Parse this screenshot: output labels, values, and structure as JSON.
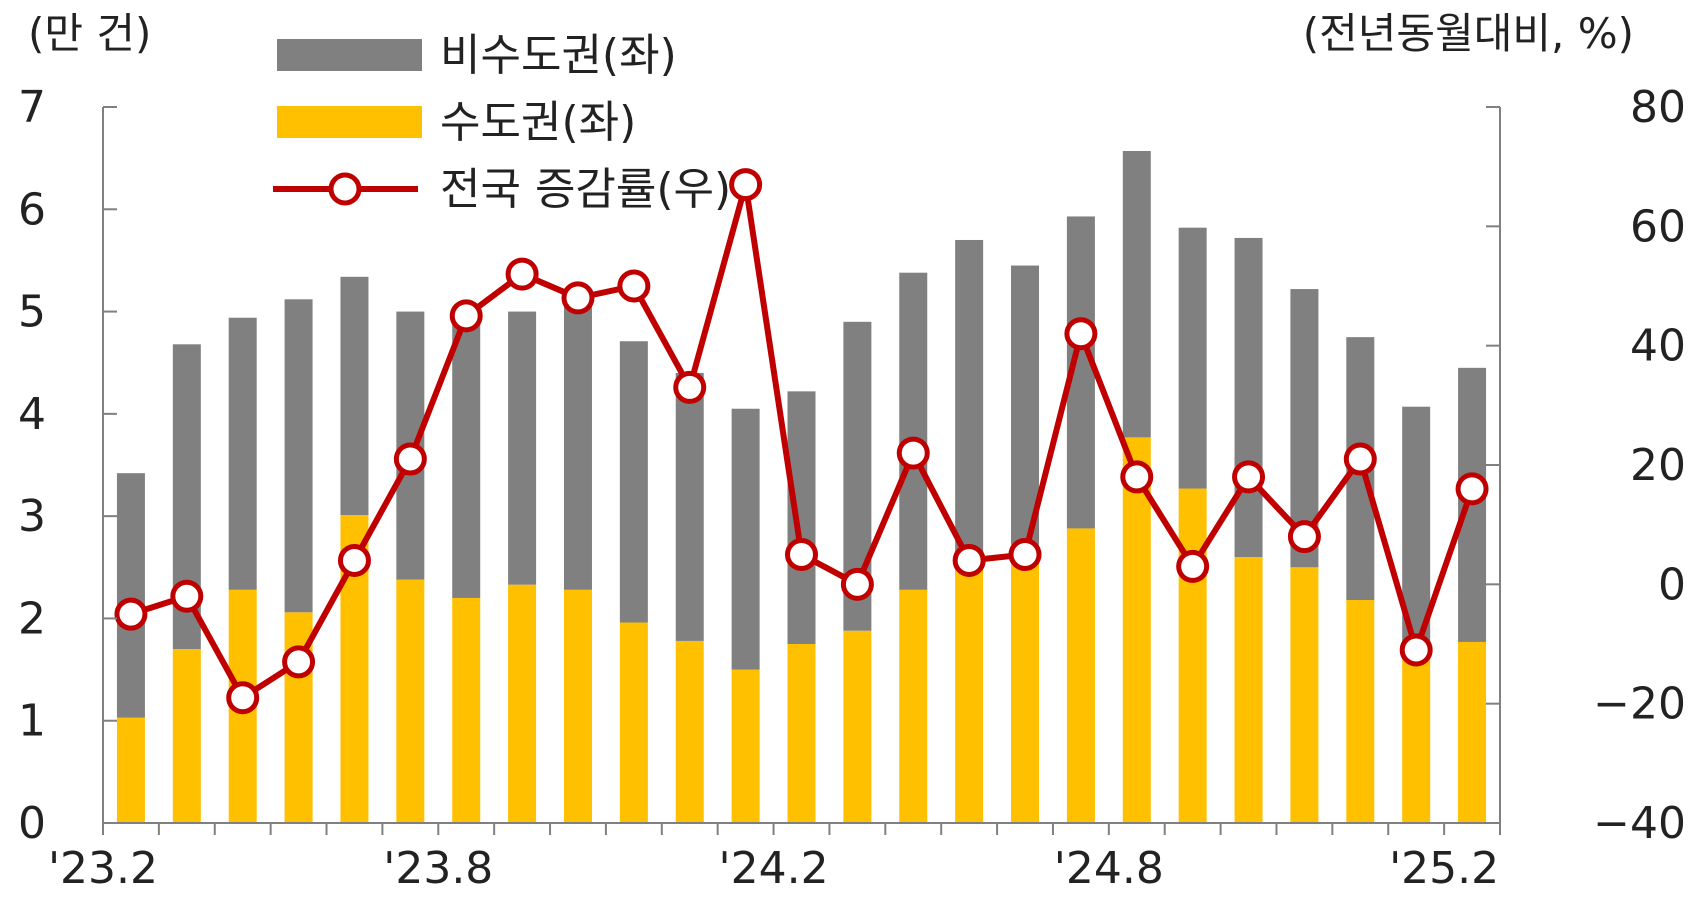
{
  "chart_data": {
    "type": "bar",
    "stacked": true,
    "months": [
      "'23.2",
      "'23.3",
      "'23.4",
      "'23.5",
      "'23.6",
      "'23.7",
      "'23.8",
      "'23.9",
      "'23.10",
      "'23.11",
      "'23.12",
      "'24.1",
      "'24.2",
      "'24.3",
      "'24.4",
      "'24.5",
      "'24.6",
      "'24.7",
      "'24.8",
      "'24.9",
      "'24.10",
      "'24.11",
      "'24.12",
      "'25.1",
      "'25.2"
    ],
    "x_tick_labels": [
      "'23.2",
      "'23.8",
      "'24.2",
      "'24.8",
      "'25.2"
    ],
    "left_unit": "(만 건)",
    "right_unit": "(전년동월대비, %)",
    "left_ylim": [
      0,
      7
    ],
    "left_ticks": [
      "0",
      "1",
      "2",
      "3",
      "4",
      "5",
      "6",
      "7"
    ],
    "right_ylim": [
      -40,
      80
    ],
    "right_ticks": [
      "−40",
      "−20",
      "0",
      "20",
      "40",
      "60",
      "80"
    ],
    "legend_position": "top-left",
    "series": [
      {
        "name": "수도권(좌)",
        "kind": "bar",
        "axis": "left",
        "color": "#FFC000",
        "values": [
          1.03,
          1.7,
          2.28,
          2.06,
          3.01,
          2.38,
          2.2,
          2.33,
          2.28,
          1.96,
          1.78,
          1.5,
          1.75,
          1.88,
          2.28,
          2.62,
          2.72,
          2.88,
          3.77,
          3.27,
          2.6,
          2.5,
          2.18,
          1.62,
          1.77
        ]
      },
      {
        "name": "비수도권(좌)",
        "kind": "bar",
        "axis": "left",
        "color": "#808080",
        "values": [
          2.39,
          2.98,
          2.66,
          3.06,
          2.33,
          2.62,
          2.8,
          2.67,
          2.84,
          2.75,
          2.62,
          2.55,
          2.47,
          3.02,
          3.1,
          3.08,
          2.73,
          3.05,
          2.8,
          2.55,
          3.12,
          2.72,
          2.57,
          2.45,
          2.68
        ]
      },
      {
        "name": "전국 증감률(우)",
        "kind": "line",
        "axis": "right",
        "color": "#C00000",
        "values": [
          -5,
          -2,
          -19,
          -13,
          4,
          21,
          45,
          52,
          48,
          50,
          33,
          67,
          5,
          0,
          22,
          4,
          5,
          42,
          18,
          3,
          18,
          8,
          21,
          -11,
          16
        ]
      }
    ]
  }
}
